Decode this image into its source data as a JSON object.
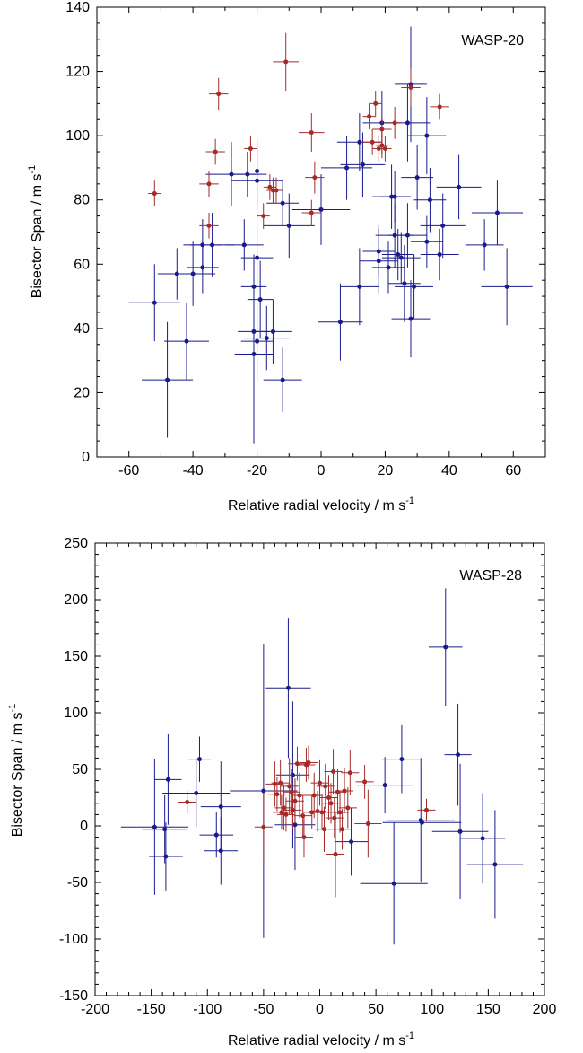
{
  "chart_data": [
    {
      "type": "scatter",
      "title": "WASP-20",
      "xlabel": "Relative radial velocity / m s",
      "ylabel": "Bisector Span / m s",
      "unit_superscript": "-1",
      "xlim": [
        -70,
        70
      ],
      "ylim": [
        0,
        140
      ],
      "x_ticks": [
        -60,
        -40,
        -20,
        0,
        20,
        40,
        60
      ],
      "y_ticks": [
        0,
        20,
        40,
        60,
        80,
        100,
        120,
        140
      ],
      "grid": false,
      "colors": {
        "series_a": "#1a1a8c",
        "series_b": "#a52a2a"
      },
      "series": [
        {
          "color": "#1a1a8c",
          "points": [
            {
              "x": -52,
              "y": 48,
              "xerr": 8,
              "yerr": 12
            },
            {
              "x": -48,
              "y": 24,
              "xerr": 8,
              "yerr": 18
            },
            {
              "x": -45,
              "y": 57,
              "xerr": 6,
              "yerr": 8
            },
            {
              "x": -42,
              "y": 36,
              "xerr": 7,
              "yerr": 12
            },
            {
              "x": -40,
              "y": 57,
              "xerr": 7,
              "yerr": 10
            },
            {
              "x": -37,
              "y": 59,
              "xerr": 5,
              "yerr": 8
            },
            {
              "x": -37,
              "y": 66,
              "xerr": 6,
              "yerr": 8
            },
            {
              "x": -34,
              "y": 66,
              "xerr": 7,
              "yerr": 10
            },
            {
              "x": -28,
              "y": 88,
              "xerr": 8,
              "yerr": 10
            },
            {
              "x": -24,
              "y": 66,
              "xerr": 6,
              "yerr": 8
            },
            {
              "x": -23,
              "y": 88,
              "xerr": 6,
              "yerr": 7
            },
            {
              "x": -21,
              "y": 53,
              "xerr": 4,
              "yerr": 10
            },
            {
              "x": -21,
              "y": 32,
              "xerr": 6,
              "yerr": 28
            },
            {
              "x": -21,
              "y": 39,
              "xerr": 5,
              "yerr": 10
            },
            {
              "x": -20,
              "y": 86,
              "xerr": 8,
              "yerr": 12
            },
            {
              "x": -20,
              "y": 89,
              "xerr": 7,
              "yerr": 10
            },
            {
              "x": -20,
              "y": 62,
              "xerr": 5,
              "yerr": 10
            },
            {
              "x": -20,
              "y": 36,
              "xerr": 5,
              "yerr": 12
            },
            {
              "x": -19,
              "y": 49,
              "xerr": 4,
              "yerr": 12
            },
            {
              "x": -17,
              "y": 37,
              "xerr": 7,
              "yerr": 10
            },
            {
              "x": -15,
              "y": 39,
              "xerr": 6,
              "yerr": 10
            },
            {
              "x": -12,
              "y": 79,
              "xerr": 5,
              "yerr": 7
            },
            {
              "x": -12,
              "y": 24,
              "xerr": 6,
              "yerr": 10
            },
            {
              "x": -10,
              "y": 72,
              "xerr": 8,
              "yerr": 10
            },
            {
              "x": 0,
              "y": 77,
              "xerr": 9,
              "yerr": 11
            },
            {
              "x": 6,
              "y": 42,
              "xerr": 7,
              "yerr": 12
            },
            {
              "x": 8,
              "y": 90,
              "xerr": 8,
              "yerr": 10
            },
            {
              "x": 12,
              "y": 98,
              "xerr": 7,
              "yerr": 9
            },
            {
              "x": 12,
              "y": 53,
              "xerr": 6,
              "yerr": 12
            },
            {
              "x": 13,
              "y": 91,
              "xerr": 7,
              "yerr": 10
            },
            {
              "x": 18,
              "y": 61,
              "xerr": 6,
              "yerr": 10
            },
            {
              "x": 18,
              "y": 64,
              "xerr": 5,
              "yerr": 8
            },
            {
              "x": 19,
              "y": 104,
              "xerr": 6,
              "yerr": 10
            },
            {
              "x": 21,
              "y": 59,
              "xerr": 5,
              "yerr": 8
            },
            {
              "x": 22,
              "y": 81,
              "xerr": 6,
              "yerr": 10
            },
            {
              "x": 23,
              "y": 81,
              "xerr": 5,
              "yerr": 8
            },
            {
              "x": 23,
              "y": 69,
              "xerr": 6,
              "yerr": 10
            },
            {
              "x": 24,
              "y": 63,
              "xerr": 5,
              "yerr": 8
            },
            {
              "x": 25,
              "y": 62,
              "xerr": 6,
              "yerr": 8
            },
            {
              "x": 26,
              "y": 54,
              "xerr": 5,
              "yerr": 12
            },
            {
              "x": 27,
              "y": 104,
              "xerr": 7,
              "yerr": 12
            },
            {
              "x": 27,
              "y": 69,
              "xerr": 6,
              "yerr": 10
            },
            {
              "x": 28,
              "y": 43,
              "xerr": 6,
              "yerr": 12
            },
            {
              "x": 28,
              "y": 116,
              "xerr": 5,
              "yerr": 18
            },
            {
              "x": 29,
              "y": 53,
              "xerr": 6,
              "yerr": 10
            },
            {
              "x": 30,
              "y": 87,
              "xerr": 5,
              "yerr": 10
            },
            {
              "x": 33,
              "y": 67,
              "xerr": 5,
              "yerr": 8
            },
            {
              "x": 33,
              "y": 100,
              "xerr": 6,
              "yerr": 12
            },
            {
              "x": 34,
              "y": 80,
              "xerr": 5,
              "yerr": 10
            },
            {
              "x": 37,
              "y": 63,
              "xerr": 6,
              "yerr": 8
            },
            {
              "x": 38,
              "y": 72,
              "xerr": 7,
              "yerr": 10
            },
            {
              "x": 43,
              "y": 84,
              "xerr": 7,
              "yerr": 10
            },
            {
              "x": 51,
              "y": 66,
              "xerr": 6,
              "yerr": 8
            },
            {
              "x": 55,
              "y": 76,
              "xerr": 8,
              "yerr": 10
            },
            {
              "x": 58,
              "y": 53,
              "xerr": 8,
              "yerr": 12
            }
          ]
        },
        {
          "color": "#a52a2a",
          "points": [
            {
              "x": -52,
              "y": 82,
              "xerr": 2,
              "yerr": 4
            },
            {
              "x": -32,
              "y": 113,
              "xerr": 3,
              "yerr": 5
            },
            {
              "x": -33,
              "y": 95,
              "xerr": 3,
              "yerr": 4
            },
            {
              "x": -35,
              "y": 85,
              "xerr": 3,
              "yerr": 4
            },
            {
              "x": -35,
              "y": 72,
              "xerr": 3,
              "yerr": 4
            },
            {
              "x": -22,
              "y": 96,
              "xerr": 2,
              "yerr": 4
            },
            {
              "x": -18,
              "y": 75,
              "xerr": 2,
              "yerr": 4
            },
            {
              "x": -16,
              "y": 84,
              "xerr": 2,
              "yerr": 4
            },
            {
              "x": -15,
              "y": 83,
              "xerr": 2,
              "yerr": 4
            },
            {
              "x": -14,
              "y": 83,
              "xerr": 2,
              "yerr": 4
            },
            {
              "x": -11,
              "y": 123,
              "xerr": 4,
              "yerr": 9
            },
            {
              "x": -3,
              "y": 101,
              "xerr": 4,
              "yerr": 6
            },
            {
              "x": -2,
              "y": 87,
              "xerr": 3,
              "yerr": 5
            },
            {
              "x": -3,
              "y": 76,
              "xerr": 3,
              "yerr": 4
            },
            {
              "x": 15,
              "y": 106,
              "xerr": 2,
              "yerr": 4
            },
            {
              "x": 16,
              "y": 98,
              "xerr": 3,
              "yerr": 4
            },
            {
              "x": 17,
              "y": 110,
              "xerr": 2,
              "yerr": 4
            },
            {
              "x": 18,
              "y": 96,
              "xerr": 2,
              "yerr": 4
            },
            {
              "x": 19,
              "y": 97,
              "xerr": 2,
              "yerr": 4
            },
            {
              "x": 20,
              "y": 96,
              "xerr": 2,
              "yerr": 4
            },
            {
              "x": 19,
              "y": 102,
              "xerr": 3,
              "yerr": 4
            },
            {
              "x": 23,
              "y": 104,
              "xerr": 2,
              "yerr": 5
            },
            {
              "x": 28,
              "y": 115,
              "xerr": 3,
              "yerr": 6
            },
            {
              "x": 37,
              "y": 109,
              "xerr": 3,
              "yerr": 4
            }
          ]
        }
      ]
    },
    {
      "type": "scatter",
      "title": "WASP-28",
      "xlabel": "Relative radial velocity / m s",
      "ylabel": "Bisector Span / m s",
      "unit_superscript": "-1",
      "xlim": [
        -200,
        200
      ],
      "ylim": [
        -150,
        250
      ],
      "x_ticks": [
        -200,
        -150,
        -100,
        -50,
        0,
        50,
        100,
        150,
        200
      ],
      "y_ticks": [
        -150,
        -100,
        -50,
        0,
        50,
        100,
        150,
        200,
        250
      ],
      "grid": false,
      "colors": {
        "series_a": "#1a1a8c",
        "series_b": "#a52a2a"
      },
      "series": [
        {
          "color": "#1a1a8c",
          "points": [
            {
              "x": -147,
              "y": -1,
              "xerr": 30,
              "yerr": 60
            },
            {
              "x": -138,
              "y": -3,
              "xerr": 20,
              "yerr": 30
            },
            {
              "x": -137,
              "y": -27,
              "xerr": 15,
              "yerr": 30
            },
            {
              "x": -135,
              "y": 41,
              "xerr": 12,
              "yerr": 40
            },
            {
              "x": -110,
              "y": 29,
              "xerr": 30,
              "yerr": 30
            },
            {
              "x": -107,
              "y": 59,
              "xerr": 10,
              "yerr": 20
            },
            {
              "x": -92,
              "y": -8,
              "xerr": 15,
              "yerr": 20
            },
            {
              "x": -88,
              "y": 17,
              "xerr": 18,
              "yerr": 40
            },
            {
              "x": -88,
              "y": -22,
              "xerr": 15,
              "yerr": 30
            },
            {
              "x": -50,
              "y": 31,
              "xerr": 30,
              "yerr": 130
            },
            {
              "x": -28,
              "y": 122,
              "xerr": 20,
              "yerr": 62
            },
            {
              "x": -24,
              "y": 45,
              "xerr": 15,
              "yerr": 65
            },
            {
              "x": -22,
              "y": 1,
              "xerr": 18,
              "yerr": 40
            },
            {
              "x": 28,
              "y": -14,
              "xerr": 15,
              "yerr": 30
            },
            {
              "x": 58,
              "y": 36,
              "xerr": 25,
              "yerr": 25
            },
            {
              "x": 66,
              "y": -51,
              "xerr": 30,
              "yerr": 54
            },
            {
              "x": 73,
              "y": 59,
              "xerr": 18,
              "yerr": 30
            },
            {
              "x": 90,
              "y": 5,
              "xerr": 30,
              "yerr": 55
            },
            {
              "x": 91,
              "y": 3,
              "xerr": 35,
              "yerr": 50
            },
            {
              "x": 112,
              "y": 158,
              "xerr": 15,
              "yerr": 52
            },
            {
              "x": 123,
              "y": 63,
              "xerr": 12,
              "yerr": 45
            },
            {
              "x": 125,
              "y": -5,
              "xerr": 25,
              "yerr": 60
            },
            {
              "x": 145,
              "y": -11,
              "xerr": 20,
              "yerr": 40
            },
            {
              "x": 156,
              "y": -34,
              "xerr": 25,
              "yerr": 48
            }
          ]
        },
        {
          "color": "#a52a2a",
          "points": [
            {
              "x": -118,
              "y": 21,
              "xerr": 8,
              "yerr": 10
            },
            {
              "x": -50,
              "y": -1,
              "xerr": 8,
              "yerr": 30
            },
            {
              "x": -40,
              "y": 37,
              "xerr": 8,
              "yerr": 20
            },
            {
              "x": -38,
              "y": 28,
              "xerr": 8,
              "yerr": 15
            },
            {
              "x": -35,
              "y": 38,
              "xerr": 8,
              "yerr": 20
            },
            {
              "x": -34,
              "y": 12,
              "xerr": 8,
              "yerr": 15
            },
            {
              "x": -32,
              "y": 16,
              "xerr": 8,
              "yerr": 20
            },
            {
              "x": -30,
              "y": 10,
              "xerr": 8,
              "yerr": 15
            },
            {
              "x": -27,
              "y": 35,
              "xerr": 8,
              "yerr": 25
            },
            {
              "x": -25,
              "y": 30,
              "xerr": 8,
              "yerr": 20
            },
            {
              "x": -24,
              "y": 14,
              "xerr": 8,
              "yerr": 18
            },
            {
              "x": -22,
              "y": 22,
              "xerr": 8,
              "yerr": 20
            },
            {
              "x": -20,
              "y": 55,
              "xerr": 8,
              "yerr": 15
            },
            {
              "x": -18,
              "y": 27,
              "xerr": 8,
              "yerr": 20
            },
            {
              "x": -15,
              "y": 9,
              "xerr": 8,
              "yerr": 18
            },
            {
              "x": -12,
              "y": 54,
              "xerr": 8,
              "yerr": 15
            },
            {
              "x": -10,
              "y": 56,
              "xerr": 8,
              "yerr": 15
            },
            {
              "x": -14,
              "y": -10,
              "xerr": 8,
              "yerr": 18
            },
            {
              "x": -7,
              "y": 12,
              "xerr": 8,
              "yerr": 15
            },
            {
              "x": -5,
              "y": 27,
              "xerr": 8,
              "yerr": 20
            },
            {
              "x": -2,
              "y": 13,
              "xerr": 8,
              "yerr": 18
            },
            {
              "x": 0,
              "y": 38,
              "xerr": 8,
              "yerr": 20
            },
            {
              "x": 2,
              "y": 12,
              "xerr": 8,
              "yerr": 15
            },
            {
              "x": 4,
              "y": -3,
              "xerr": 8,
              "yerr": 20
            },
            {
              "x": 5,
              "y": 35,
              "xerr": 8,
              "yerr": 20
            },
            {
              "x": 8,
              "y": 25,
              "xerr": 8,
              "yerr": 20
            },
            {
              "x": 10,
              "y": 20,
              "xerr": 8,
              "yerr": 18
            },
            {
              "x": 12,
              "y": 48,
              "xerr": 8,
              "yerr": 20
            },
            {
              "x": 13,
              "y": 7,
              "xerr": 8,
              "yerr": 18
            },
            {
              "x": 14,
              "y": -25,
              "xerr": 8,
              "yerr": 38
            },
            {
              "x": 16,
              "y": 30,
              "xerr": 8,
              "yerr": 20
            },
            {
              "x": 18,
              "y": 12,
              "xerr": 8,
              "yerr": 18
            },
            {
              "x": 20,
              "y": -3,
              "xerr": 8,
              "yerr": 18
            },
            {
              "x": 22,
              "y": 31,
              "xerr": 8,
              "yerr": 20
            },
            {
              "x": 25,
              "y": 16,
              "xerr": 8,
              "yerr": 18
            },
            {
              "x": 27,
              "y": 47,
              "xerr": 8,
              "yerr": 20
            },
            {
              "x": 40,
              "y": 39,
              "xerr": 8,
              "yerr": 15
            },
            {
              "x": 43,
              "y": 2,
              "xerr": 12,
              "yerr": 30
            },
            {
              "x": 95,
              "y": 14,
              "xerr": 8,
              "yerr": 10
            }
          ]
        }
      ]
    }
  ]
}
